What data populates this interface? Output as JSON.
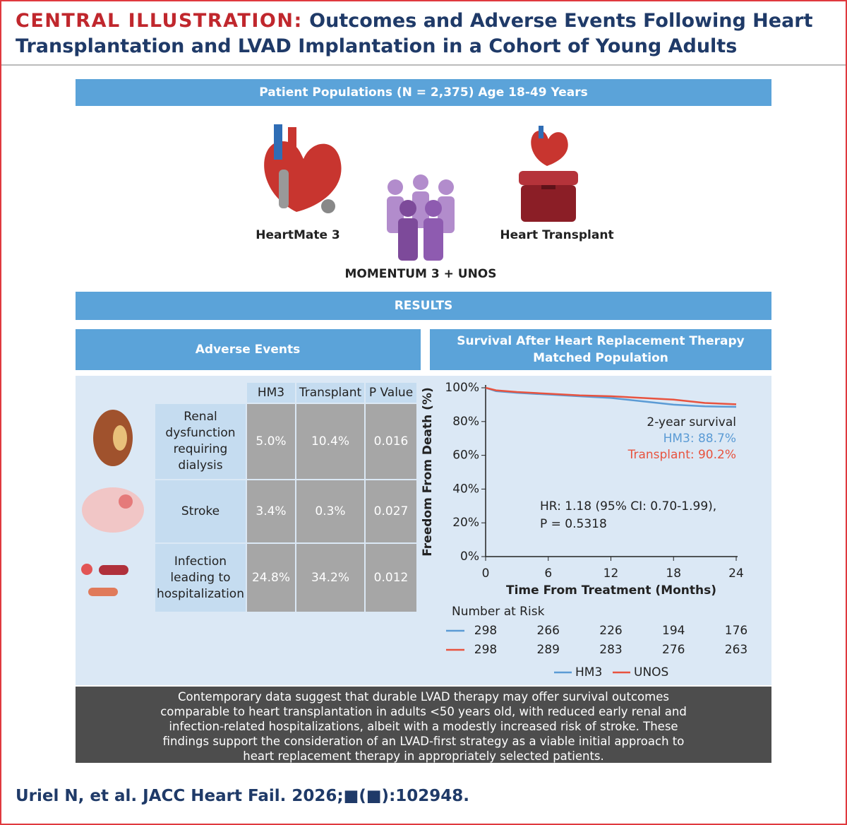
{
  "header": {
    "label": "CENTRAL ILLUSTRATION:",
    "title": "Outcomes and Adverse Events Following Heart Transplantation and LVAD Implantation in a Cohort of Young Adults"
  },
  "populations": {
    "title": "Patient Populations (N = 2,375) Age 18-49 Years",
    "items": [
      "HeartMate 3",
      "MOMENTUM 3 + UNOS",
      "Heart Transplant"
    ]
  },
  "results": {
    "title": "RESULTS"
  },
  "adverse_events": {
    "title": "Adverse Events",
    "columns": [
      "HM3",
      "Transplant",
      "P Value"
    ],
    "rows": [
      [
        "Renal dysfunction requiring dialysis",
        "5.0%",
        "10.4%",
        "0.016"
      ],
      [
        "Stroke",
        "3.4%",
        "0.3%",
        "0.027"
      ],
      [
        "Infection leading to hospitalization",
        "24.8%",
        "34.2%",
        "0.012"
      ]
    ]
  },
  "chart_data": {
    "type": "line",
    "title": "Survival After Heart Replacement Therapy",
    "subtitle": "Matched Population",
    "x_label": "Time From Treatment (Months)",
    "y_label": "Freedom From Death (%)",
    "x": [
      0,
      1,
      3,
      6,
      9,
      12,
      15,
      18,
      21,
      24
    ],
    "series": [
      {
        "name": "HM3",
        "color": "#5b9bd5",
        "values": [
          100,
          98,
          97,
          96,
          95,
          94,
          92,
          90,
          89,
          88.7
        ]
      },
      {
        "name": "UNOS",
        "color": "#e8533f",
        "values": [
          100,
          98.5,
          97.5,
          96.5,
          95.5,
          95,
          94,
          93,
          91,
          90.2
        ]
      }
    ],
    "xlim": [
      0,
      24
    ],
    "xticks": [
      0,
      6,
      12,
      18,
      24
    ],
    "ylim": [
      0,
      100
    ],
    "yticks": [
      {
        "value": 0,
        "label": "0%"
      },
      {
        "value": 20,
        "label": "20%"
      },
      {
        "value": 40,
        "label": "40%"
      },
      {
        "value": 60,
        "label": "60%"
      },
      {
        "value": 80,
        "label": "80%"
      },
      {
        "value": 100,
        "label": "100%"
      }
    ],
    "annotations": [
      {
        "text": "2-year survival",
        "color": "#222222"
      },
      {
        "text": "HM3: 88.7%",
        "color": "#5b9bd5"
      },
      {
        "text": "Transplant: 90.2%",
        "color": "#e8533f"
      },
      {
        "text": "HR: 1.18 (95% CI: 0.70-1.99),",
        "color": "#222222"
      },
      {
        "text": "P = 0.5318",
        "color": "#222222"
      }
    ],
    "number_at_risk": {
      "title": "Number at Risk",
      "rows": [
        {
          "color": "#5b9bd5",
          "values": [
            298,
            266,
            226,
            194,
            176
          ]
        },
        {
          "color": "#e8533f",
          "values": [
            298,
            289,
            283,
            276,
            263
          ]
        }
      ]
    }
  },
  "conclusion": "Contemporary data suggest that durable LVAD therapy may offer survival outcomes comparable to heart transplantation in adults <50 years old, with reduced early renal and infection-related hospitalizations, albeit with a modestly increased risk of stroke. These findings support the consideration of an LVAD-first strategy as a viable initial approach to heart replacement therapy in appropriately selected patients.",
  "citation": "Uriel N, et al. JACC Heart Fail. 2026;■(■):102948."
}
